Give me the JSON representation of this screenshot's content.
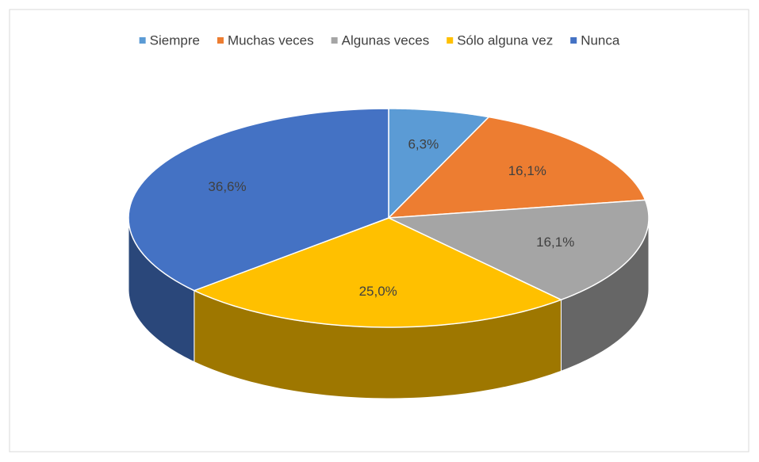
{
  "chart_data": {
    "type": "pie",
    "categories": [
      "Siempre",
      "Muchas veces",
      "Algunas veces",
      "Sólo alguna vez",
      "Nunca"
    ],
    "values": [
      6.3,
      16.1,
      16.1,
      25.0,
      36.6
    ],
    "value_labels": [
      "6,3%",
      "16,1%",
      "16,1%",
      "25,0%",
      "36,6%"
    ],
    "colors": [
      "#5b9bd5",
      "#ed7d31",
      "#a5a5a5",
      "#ffc000",
      "#4472c4"
    ],
    "legend": "top"
  }
}
